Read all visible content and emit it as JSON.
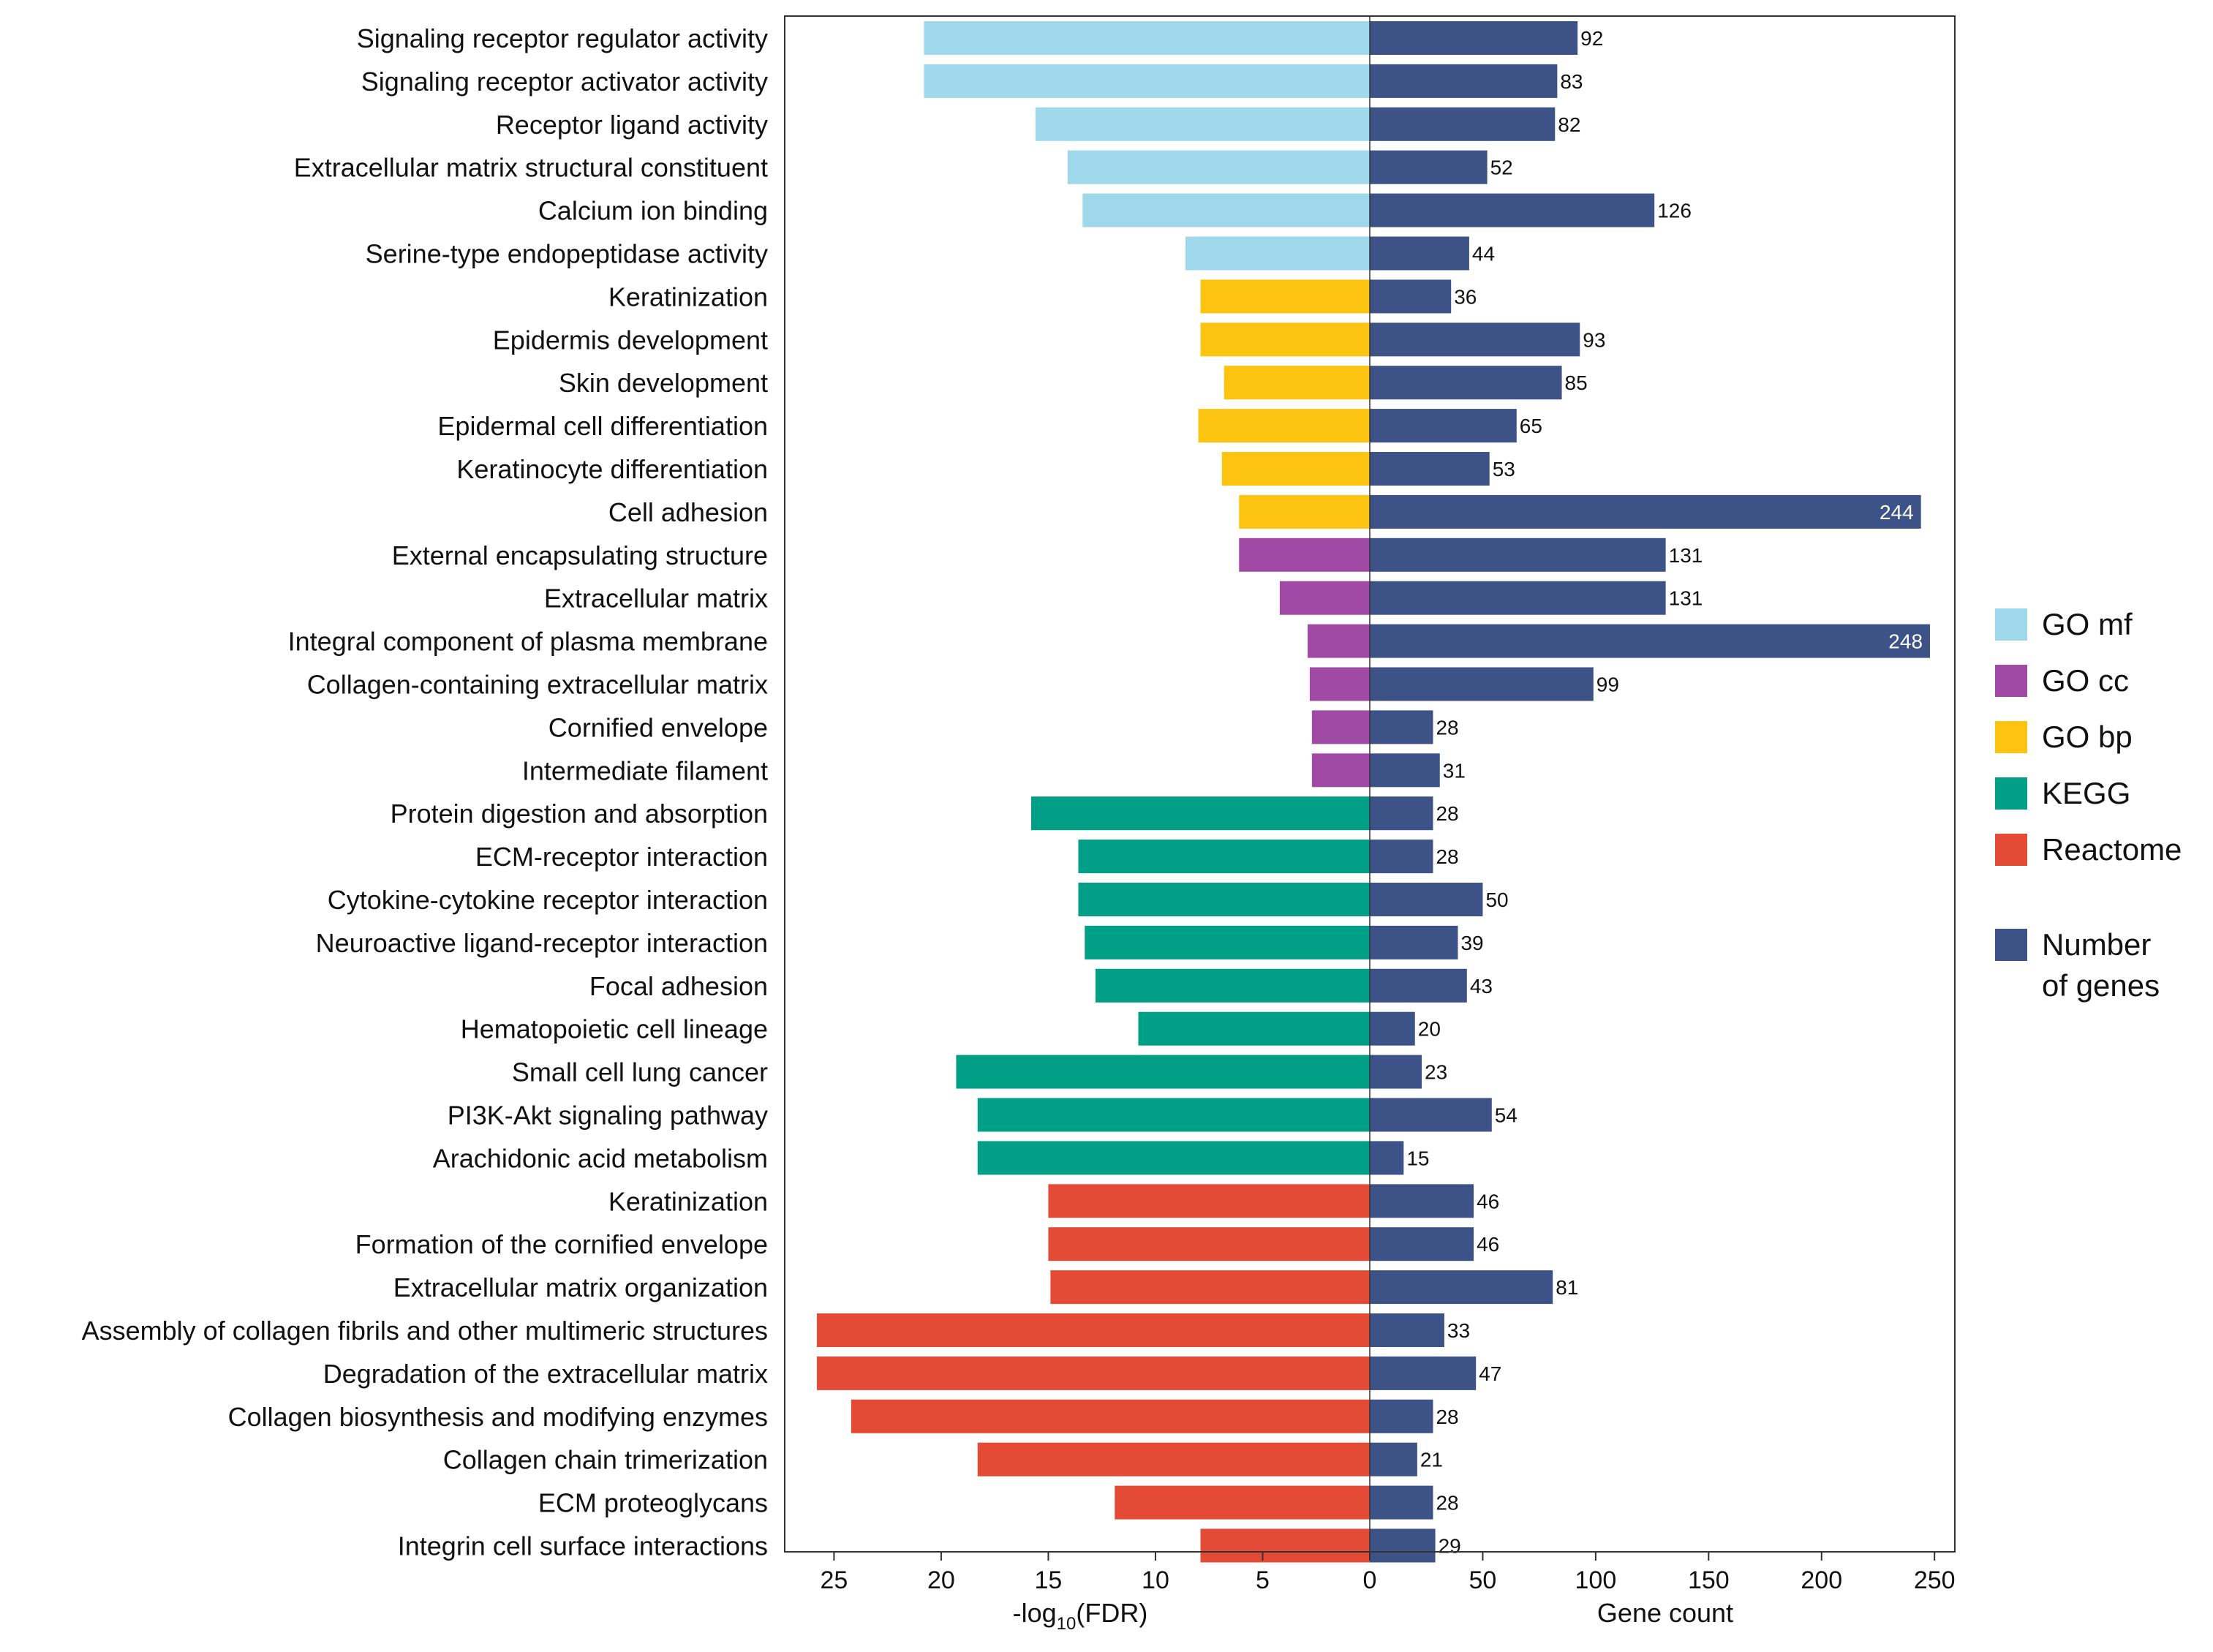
{
  "chart_data": {
    "type": "bar",
    "subtype": "diverging-horizontal",
    "categories": [
      "Signaling receptor regulator activity",
      "Signaling receptor activator activity",
      "Receptor ligand activity",
      "Extracellular matrix structural constituent",
      "Calcium ion binding",
      "Serine-type endopeptidase activity",
      "Keratinization",
      "Epidermis development",
      "Skin development",
      "Epidermal cell differentiation",
      "Keratinocyte differentiation",
      "Cell adhesion",
      "External encapsulating structure",
      "Extracellular matrix",
      "Integral component of plasma membrane",
      "Collagen-containing extracellular matrix",
      "Cornified envelope",
      "Intermediate filament",
      "Protein digestion and absorption",
      "ECM-receptor interaction",
      "Cytokine-cytokine receptor interaction",
      "Neuroactive ligand-receptor interaction",
      "Focal adhesion",
      "Hematopoietic cell lineage",
      "Small cell lung cancer",
      "PI3K-Akt signaling pathway",
      "Arachidonic acid metabolism",
      "Keratinization",
      "Formation of the cornified envelope",
      "Extracellular matrix organization",
      "Assembly of collagen fibrils and other multimeric structures",
      "Degradation of the extracellular matrix",
      "Collagen biosynthesis and modifying enzymes",
      "Collagen chain trimerization",
      "ECM proteoglycans",
      "Integrin cell surface interactions"
    ],
    "groups": [
      "GO mf",
      "GO mf",
      "GO mf",
      "GO mf",
      "GO mf",
      "GO mf",
      "GO bp",
      "GO bp",
      "GO bp",
      "GO bp",
      "GO bp",
      "GO bp",
      "GO cc",
      "GO cc",
      "GO cc",
      "GO cc",
      "GO cc",
      "GO cc",
      "KEGG",
      "KEGG",
      "KEGG",
      "KEGG",
      "KEGG",
      "KEGG",
      "KEGG",
      "KEGG",
      "KEGG",
      "Reactome",
      "Reactome",
      "Reactome",
      "Reactome",
      "Reactome",
      "Reactome",
      "Reactome",
      "Reactome",
      "Reactome"
    ],
    "series": [
      {
        "name": "-log10(FDR)",
        "values": [
          20.8,
          20.8,
          15.6,
          14.1,
          13.4,
          8.6,
          7.9,
          7.9,
          6.8,
          8.0,
          6.9,
          6.1,
          6.1,
          4.2,
          2.9,
          2.8,
          2.7,
          2.7,
          15.8,
          13.6,
          13.6,
          13.3,
          12.8,
          10.8,
          19.3,
          18.3,
          18.3,
          15.0,
          15.0,
          14.9,
          25.8,
          25.8,
          24.2,
          18.3,
          11.9,
          7.9
        ]
      },
      {
        "name": "Number of genes",
        "values": [
          92,
          83,
          82,
          52,
          126,
          44,
          36,
          93,
          85,
          65,
          53,
          244,
          131,
          131,
          248,
          99,
          28,
          31,
          28,
          28,
          50,
          39,
          43,
          20,
          23,
          54,
          15,
          46,
          46,
          81,
          33,
          47,
          28,
          21,
          28,
          29
        ]
      }
    ],
    "left_axis": {
      "label_main": "-log",
      "label_sub": "10",
      "label_tail": "(FDR)",
      "range": [
        0,
        27.3
      ],
      "ticks": [
        25,
        20,
        15,
        10,
        5,
        0
      ],
      "tick_labels": [
        "25",
        "20",
        "15",
        "10",
        "5",
        "0"
      ]
    },
    "right_axis": {
      "label": "Gene count",
      "range": [
        0,
        259
      ],
      "ticks": [
        0,
        50,
        100,
        150,
        200,
        250
      ],
      "tick_labels": [
        "50",
        "100",
        "150",
        "200",
        "250"
      ]
    },
    "legend": {
      "position": "right",
      "items": [
        {
          "label": "GO mf",
          "color": "#9ED8EA"
        },
        {
          "label": "GO cc",
          "color": "#A14AA5"
        },
        {
          "label": "GO bp",
          "color": "#FDC311"
        },
        {
          "label": "KEGG",
          "color": "#019F86"
        },
        {
          "label": "Reactome",
          "color": "#E34B37"
        }
      ],
      "genes_item": {
        "label_line1": "Number",
        "label_line2": "of genes",
        "color": "#3D5286"
      }
    },
    "group_colors": {
      "GO mf": "#9ED8EA",
      "GO cc": "#A14AA5",
      "GO bp": "#FDC311",
      "KEGG": "#019F86",
      "Reactome": "#E34B37"
    },
    "genes_color": "#3D5286",
    "grid": false
  }
}
